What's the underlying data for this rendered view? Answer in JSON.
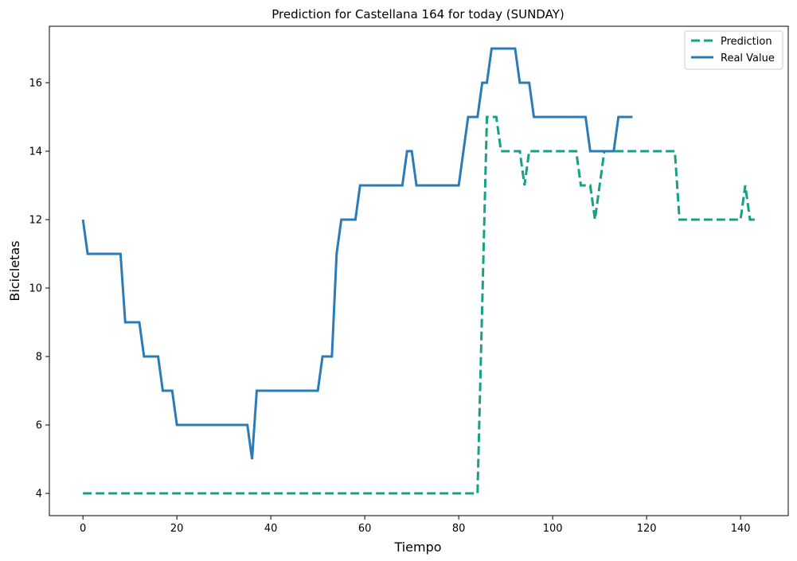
{
  "chart_data": {
    "type": "line",
    "title": "Prediction for Castellana 164 for today (SUNDAY)",
    "xlabel": "Tiempo",
    "ylabel": "Bicicletas",
    "xlim": [
      -7.15,
      150.15
    ],
    "ylim": [
      3.35,
      17.65
    ],
    "xticks": [
      0,
      20,
      40,
      60,
      80,
      100,
      120,
      140
    ],
    "yticks": [
      4,
      6,
      8,
      10,
      12,
      14,
      16
    ],
    "grid": false,
    "legend_position": "top-right",
    "series": [
      {
        "name": "Prediction",
        "color": "#17a085",
        "style": "dashed",
        "points": [
          [
            0,
            4
          ],
          [
            84,
            4
          ],
          [
            86,
            15
          ],
          [
            88,
            15
          ],
          [
            89,
            14
          ],
          [
            93,
            14
          ],
          [
            94,
            13
          ],
          [
            95,
            14
          ],
          [
            105,
            14
          ],
          [
            106,
            13
          ],
          [
            108,
            13
          ],
          [
            109,
            12
          ],
          [
            111,
            14
          ],
          [
            126,
            14
          ],
          [
            127,
            12
          ],
          [
            140,
            12
          ],
          [
            141,
            13
          ],
          [
            142,
            12
          ],
          [
            143,
            12
          ]
        ]
      },
      {
        "name": "Real Value",
        "color": "#2b7bb9",
        "style": "solid",
        "points": [
          [
            0,
            12
          ],
          [
            1,
            11
          ],
          [
            8,
            11
          ],
          [
            9,
            9
          ],
          [
            12,
            9
          ],
          [
            13,
            8
          ],
          [
            16,
            8
          ],
          [
            17,
            7
          ],
          [
            19,
            7
          ],
          [
            20,
            6
          ],
          [
            35,
            6
          ],
          [
            36,
            5
          ],
          [
            37,
            7
          ],
          [
            50,
            7
          ],
          [
            51,
            8
          ],
          [
            53,
            8
          ],
          [
            54,
            11
          ],
          [
            55,
            12
          ],
          [
            58,
            12
          ],
          [
            59,
            13
          ],
          [
            68,
            13
          ],
          [
            69,
            14
          ],
          [
            70,
            14
          ],
          [
            71,
            13
          ],
          [
            80,
            13
          ],
          [
            82,
            15
          ],
          [
            84,
            15
          ],
          [
            85,
            16
          ],
          [
            86,
            16
          ],
          [
            87,
            17
          ],
          [
            92,
            17
          ],
          [
            93,
            16
          ],
          [
            95,
            16
          ],
          [
            96,
            15
          ],
          [
            107,
            15
          ],
          [
            108,
            14
          ],
          [
            113,
            14
          ],
          [
            114,
            15
          ],
          [
            117,
            15
          ]
        ]
      }
    ]
  }
}
